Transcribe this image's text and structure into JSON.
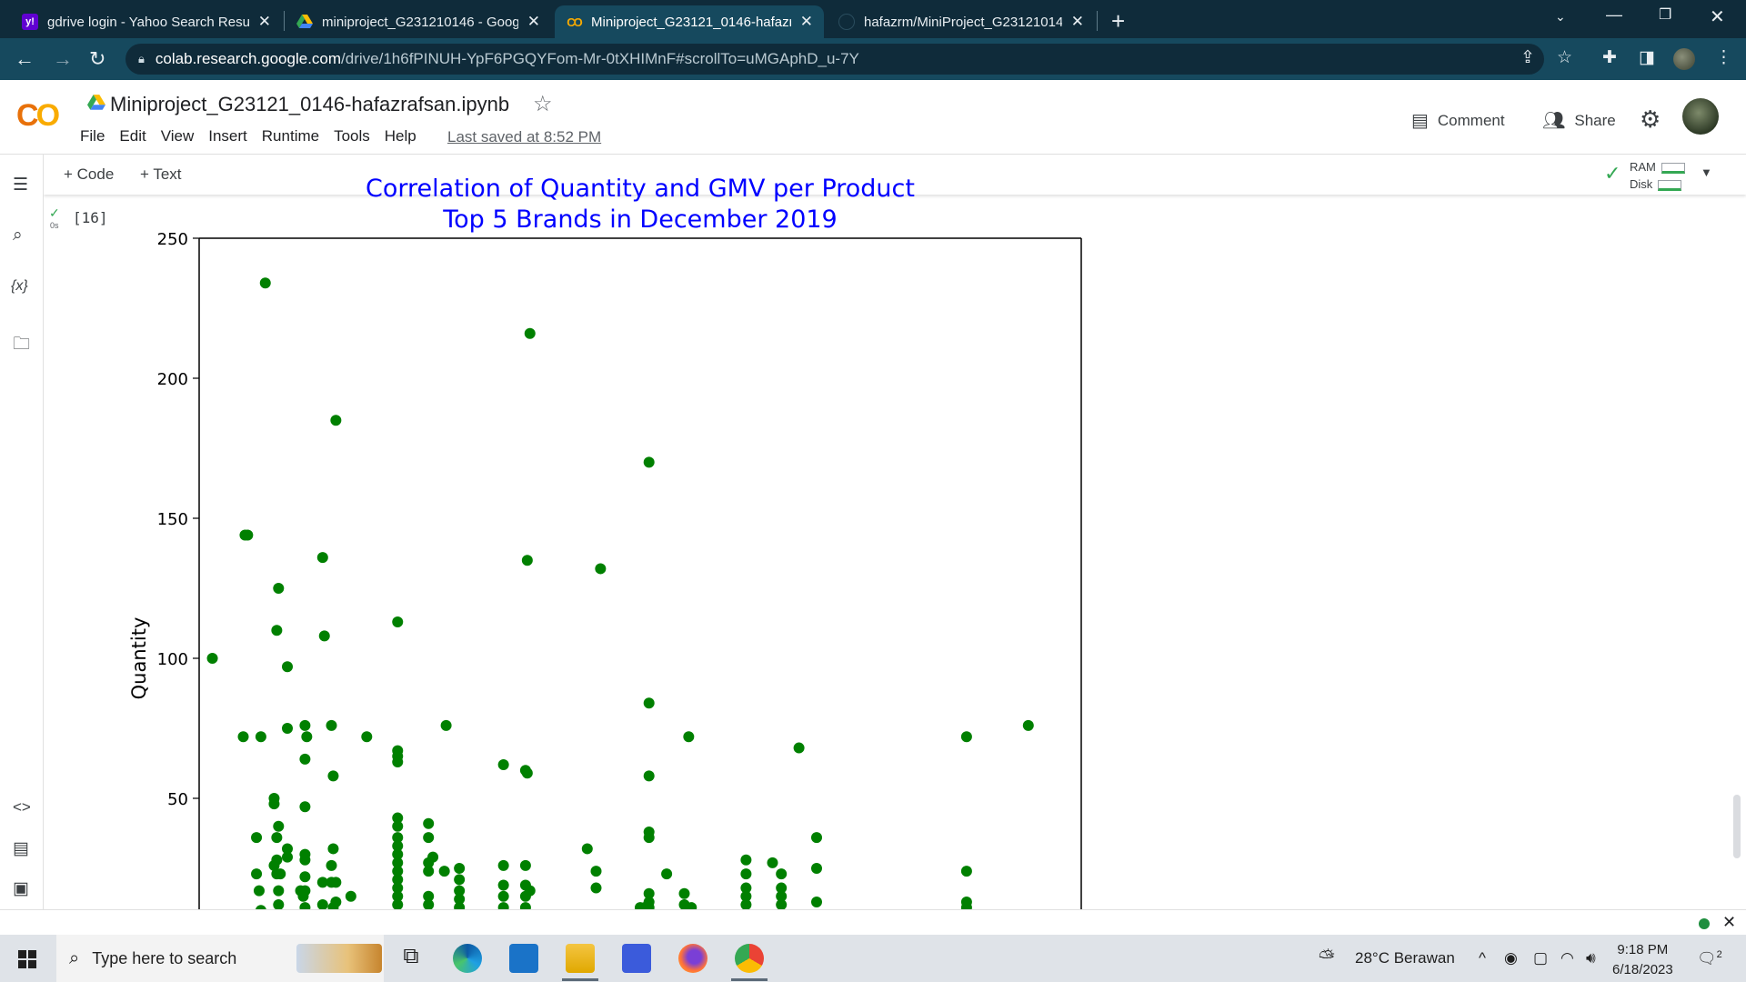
{
  "browser": {
    "tabs": [
      {
        "title": "gdrive login - Yahoo Search Resu",
        "favicon": "yahoo-icon",
        "active": false
      },
      {
        "title": "miniproject_G231210146 - Googl",
        "favicon": "google-drive-icon",
        "active": false
      },
      {
        "title": "Miniproject_G23121_0146-hafazr",
        "favicon": "colab-icon",
        "active": true
      },
      {
        "title": "hafazrm/MiniProject_G23121014",
        "favicon": "github-icon",
        "active": false
      }
    ],
    "url_host": "colab.research.google.com",
    "url_path": "/drive/1h6fPINUH-YpF6PGQYFom-Mr-0tXHIMnF#scrollTo=uMGAphD_u-7Y"
  },
  "colab": {
    "notebook_title": "Miniproject_G23121_0146-hafazrafsan.ipynb",
    "menu": [
      "File",
      "Edit",
      "View",
      "Insert",
      "Runtime",
      "Tools",
      "Help"
    ],
    "last_saved": "Last saved at 8:52 PM",
    "comment_label": "Comment",
    "share_label": "Share",
    "add_code_label": "+ Code",
    "add_text_label": "+ Text",
    "ram_label": "RAM",
    "disk_label": "Disk",
    "cell_exec_count": "[16]",
    "cell_time": "0s"
  },
  "chart_data": {
    "type": "scatter",
    "title": "Correlation of Quantity and GMV per Product\nTop 5 Brands in December 2019",
    "title_line1": "Correlation of Quantity and GMV per Product",
    "title_line2": "Top 5 Brands in December 2019",
    "ylabel": "Quantity",
    "xlabel": "",
    "visible_ylim": [
      10,
      250
    ],
    "yticks": [
      50,
      100,
      150,
      200,
      250
    ],
    "grid": false,
    "point_color": "#008000",
    "title_color": "#0000ff",
    "x_note": "x axis ticks not visible (cropped)",
    "points": [
      [
        0.015,
        100
      ],
      [
        0.05,
        72
      ],
      [
        0.052,
        144
      ],
      [
        0.055,
        144
      ],
      [
        0.07,
        72
      ],
      [
        0.075,
        234
      ],
      [
        0.065,
        36
      ],
      [
        0.065,
        23
      ],
      [
        0.068,
        17
      ],
      [
        0.07,
        10
      ],
      [
        0.085,
        50
      ],
      [
        0.085,
        48
      ],
      [
        0.088,
        110
      ],
      [
        0.09,
        125
      ],
      [
        0.09,
        40
      ],
      [
        0.088,
        36
      ],
      [
        0.088,
        28
      ],
      [
        0.088,
        23
      ],
      [
        0.09,
        17
      ],
      [
        0.09,
        12
      ],
      [
        0.092,
        23
      ],
      [
        0.085,
        26
      ],
      [
        0.1,
        97
      ],
      [
        0.1,
        75
      ],
      [
        0.1,
        32
      ],
      [
        0.1,
        29
      ],
      [
        0.115,
        17
      ],
      [
        0.118,
        15
      ],
      [
        0.12,
        76
      ],
      [
        0.122,
        72
      ],
      [
        0.12,
        64
      ],
      [
        0.12,
        47
      ],
      [
        0.12,
        30
      ],
      [
        0.12,
        28
      ],
      [
        0.12,
        22
      ],
      [
        0.12,
        17
      ],
      [
        0.12,
        11
      ],
      [
        0.14,
        136
      ],
      [
        0.142,
        108
      ],
      [
        0.14,
        20
      ],
      [
        0.14,
        12
      ],
      [
        0.15,
        76
      ],
      [
        0.152,
        58
      ],
      [
        0.152,
        32
      ],
      [
        0.15,
        26
      ],
      [
        0.15,
        20
      ],
      [
        0.155,
        20
      ],
      [
        0.155,
        13
      ],
      [
        0.152,
        11
      ],
      [
        0.155,
        185
      ],
      [
        0.172,
        15
      ],
      [
        0.19,
        72
      ],
      [
        0.225,
        113
      ],
      [
        0.225,
        67
      ],
      [
        0.225,
        65
      ],
      [
        0.225,
        63
      ],
      [
        0.225,
        43
      ],
      [
        0.225,
        40
      ],
      [
        0.225,
        36
      ],
      [
        0.225,
        33
      ],
      [
        0.225,
        30
      ],
      [
        0.225,
        27
      ],
      [
        0.225,
        24
      ],
      [
        0.225,
        21
      ],
      [
        0.225,
        18
      ],
      [
        0.225,
        15
      ],
      [
        0.225,
        12
      ],
      [
        0.26,
        41
      ],
      [
        0.26,
        36
      ],
      [
        0.26,
        27
      ],
      [
        0.26,
        24
      ],
      [
        0.26,
        15
      ],
      [
        0.26,
        12
      ],
      [
        0.265,
        29
      ],
      [
        0.278,
        24
      ],
      [
        0.28,
        76
      ],
      [
        0.295,
        25
      ],
      [
        0.295,
        21
      ],
      [
        0.295,
        17
      ],
      [
        0.295,
        14
      ],
      [
        0.295,
        11
      ],
      [
        0.345,
        62
      ],
      [
        0.345,
        26
      ],
      [
        0.345,
        19
      ],
      [
        0.345,
        15
      ],
      [
        0.345,
        11
      ],
      [
        0.37,
        60
      ],
      [
        0.372,
        59
      ],
      [
        0.37,
        26
      ],
      [
        0.37,
        19
      ],
      [
        0.37,
        15
      ],
      [
        0.372,
        135
      ],
      [
        0.375,
        216
      ],
      [
        0.37,
        11
      ],
      [
        0.375,
        17
      ],
      [
        0.44,
        32
      ],
      [
        0.45,
        24
      ],
      [
        0.45,
        18
      ],
      [
        0.455,
        132
      ],
      [
        0.51,
        170
      ],
      [
        0.51,
        84
      ],
      [
        0.51,
        58
      ],
      [
        0.51,
        38
      ],
      [
        0.51,
        36
      ],
      [
        0.51,
        16
      ],
      [
        0.51,
        13
      ],
      [
        0.51,
        11
      ],
      [
        0.505,
        11
      ],
      [
        0.5,
        11
      ],
      [
        0.53,
        23
      ],
      [
        0.55,
        16
      ],
      [
        0.55,
        12
      ],
      [
        0.555,
        72
      ],
      [
        0.558,
        11
      ],
      [
        0.66,
        23
      ],
      [
        0.66,
        18
      ],
      [
        0.66,
        15
      ],
      [
        0.66,
        12
      ],
      [
        0.62,
        28
      ],
      [
        0.62,
        23
      ],
      [
        0.62,
        18
      ],
      [
        0.62,
        15
      ],
      [
        0.62,
        12
      ],
      [
        0.65,
        27
      ],
      [
        0.68,
        68
      ],
      [
        0.7,
        36
      ],
      [
        0.7,
        25
      ],
      [
        0.7,
        13
      ],
      [
        0.87,
        72
      ],
      [
        0.87,
        24
      ],
      [
        0.87,
        13
      ],
      [
        0.87,
        11
      ],
      [
        0.94,
        76
      ]
    ]
  },
  "taskbar": {
    "search_placeholder": "Type here to search",
    "weather": "28°C  Berawan",
    "time": "9:18 PM",
    "date": "6/18/2023",
    "notification_count": "2"
  }
}
